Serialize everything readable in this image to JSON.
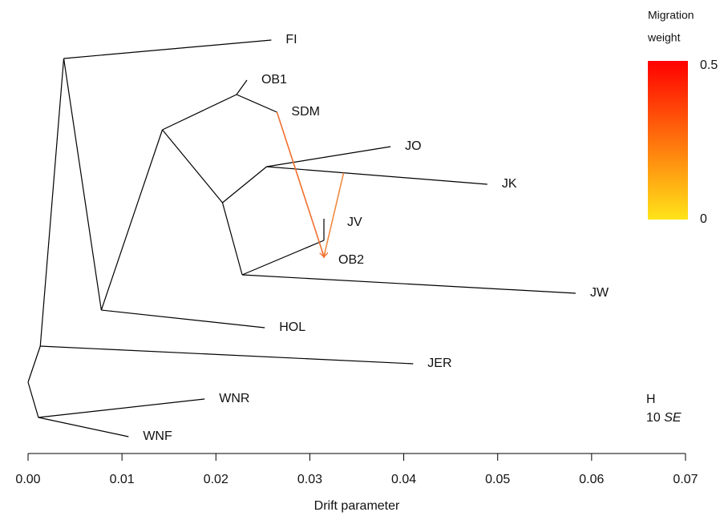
{
  "chart_data": {
    "type": "tree",
    "x_label": "Drift parameter",
    "xlim": [
      0,
      0.07
    ],
    "xticks": [
      {
        "value": 0,
        "label": "0.00"
      },
      {
        "value": 0.01,
        "label": "0.01"
      },
      {
        "value": 0.02,
        "label": "0.02"
      },
      {
        "value": 0.03,
        "label": "0.03"
      },
      {
        "value": 0.04,
        "label": "0.04"
      },
      {
        "value": 0.05,
        "label": "0.05"
      },
      {
        "value": 0.06,
        "label": "0.06"
      },
      {
        "value": 0.07,
        "label": "0.07"
      }
    ],
    "edge_color": "#000000",
    "nodes": [
      {
        "x": 0
      },
      {
        "x": 0.0013,
        "parent": 0
      },
      {
        "x": 0.0011,
        "parent": 0
      },
      {
        "x": 0.0038,
        "parent": 1
      },
      {
        "x": 0.0078,
        "parent": 3
      },
      {
        "x": 0.0143,
        "parent": 4
      },
      {
        "x": 0.0222,
        "parent": 5
      },
      {
        "x": 0.0207,
        "parent": 5
      },
      {
        "x": 0.0254,
        "parent": 7
      },
      {
        "x": 0.0228,
        "parent": 7
      },
      {
        "x": 0.0259,
        "parent": 3,
        "label": "FI"
      },
      {
        "x": 0.0233,
        "parent": 6,
        "label": "OB1"
      },
      {
        "x": 0.0265,
        "parent": 6,
        "label": "SDM"
      },
      {
        "x": 0.0386,
        "parent": 8,
        "label": "JO"
      },
      {
        "x": 0.0489,
        "parent": 8,
        "label": "JK"
      },
      {
        "x": 0.0315,
        "parent": 16,
        "label": "JV"
      },
      {
        "x": 0.0315,
        "parent": 9,
        "label": "OB2"
      },
      {
        "x": 0.0583,
        "parent": 9,
        "label": "JW"
      },
      {
        "x": 0.0252,
        "parent": 4,
        "label": "HOL"
      },
      {
        "x": 0.041,
        "parent": 1,
        "label": "JER"
      },
      {
        "x": 0.0188,
        "parent": 2,
        "label": "WNR"
      },
      {
        "x": 0.0107,
        "parent": 2,
        "label": "WNF"
      }
    ],
    "migrations": [
      {
        "source": 12,
        "source_x": 0.0265,
        "target": 16,
        "color": "#f07030"
      },
      {
        "source": 14,
        "source_x": 0.0336,
        "target": 16,
        "color": "#f08a40"
      }
    ],
    "legend_title": [
      "Migration",
      "weight"
    ],
    "clim": [
      0,
      0.5
    ],
    "cticks": [
      0,
      0.5
    ],
    "colormap": [
      "#ffe419",
      "#ff0000"
    ],
    "scale_mark": "H",
    "scale_label": [
      "10",
      "SE"
    ]
  }
}
